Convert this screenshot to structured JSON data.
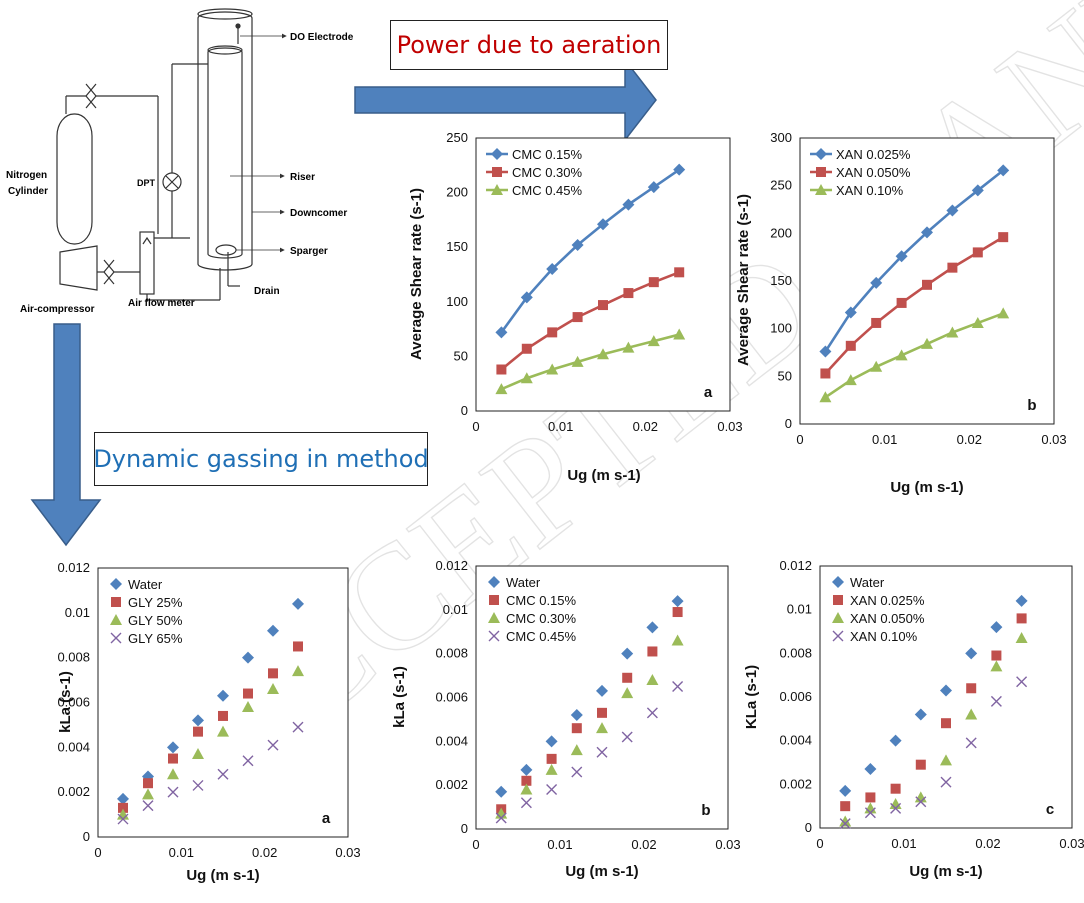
{
  "diagram": {
    "labels": {
      "do_electrode": "DO Electrode",
      "nitrogen_1": "Nitrogen",
      "nitrogen_2": "Cylinder",
      "dpt": "DPT",
      "riser": "Riser",
      "downcomer": "Downcomer",
      "sparger": "Sparger",
      "drain": "Drain",
      "air_compressor": "Air-compressor",
      "air_flow_meter": "Air flow meter"
    }
  },
  "callouts": {
    "power": "Power due to aeration",
    "dynamic": "Dynamic gassing in method"
  },
  "colors": {
    "blue": "#4F81BD",
    "red": "#C0504D",
    "green": "#9BBB59",
    "purple": "#8064A2",
    "arrow_fill": "#4F81BD",
    "arrow_stroke": "#385D8A",
    "callout_red": "#C00000",
    "callout_blue": "#1F6FB5"
  },
  "watermark": "ACCEPTED MANUSCRIPT",
  "chart_data": [
    {
      "type": "line",
      "panel": "a",
      "ylabel": "Average Shear rate (s-1)",
      "xlabel": "Ug (m s-1)",
      "xlim": [
        0,
        0.03
      ],
      "ylim": [
        0,
        250
      ],
      "xticks": [
        "0",
        "0.01",
        "0.02",
        "0.03"
      ],
      "yticks": [
        "0",
        "50",
        "100",
        "150",
        "200",
        "250"
      ],
      "legend": "top-left",
      "series": [
        {
          "name": "CMC 0.15%",
          "color": "#4F81BD",
          "marker": "diamond",
          "x": [
            0.003,
            0.006,
            0.009,
            0.012,
            0.015,
            0.018,
            0.021,
            0.024
          ],
          "y": [
            72,
            104,
            130,
            152,
            171,
            189,
            205,
            221
          ]
        },
        {
          "name": "CMC 0.30%",
          "color": "#C0504D",
          "marker": "square",
          "x": [
            0.003,
            0.006,
            0.009,
            0.012,
            0.015,
            0.018,
            0.021,
            0.024
          ],
          "y": [
            38,
            57,
            72,
            86,
            97,
            108,
            118,
            127
          ]
        },
        {
          "name": "CMC 0.45%",
          "color": "#9BBB59",
          "marker": "triangle",
          "x": [
            0.003,
            0.006,
            0.009,
            0.012,
            0.015,
            0.018,
            0.021,
            0.024
          ],
          "y": [
            20,
            30,
            38,
            45,
            52,
            58,
            64,
            70
          ]
        }
      ]
    },
    {
      "type": "line",
      "panel": "b",
      "ylabel": "Average Shear rate (s-1)",
      "xlabel": "Ug (m s-1)",
      "xlim": [
        0,
        0.03
      ],
      "ylim": [
        0,
        300
      ],
      "xticks": [
        "0",
        "0.01",
        "0.02",
        "0.03"
      ],
      "yticks": [
        "0",
        "50",
        "100",
        "150",
        "200",
        "250",
        "300"
      ],
      "legend": "top-left",
      "series": [
        {
          "name": "XAN 0.025%",
          "color": "#4F81BD",
          "marker": "diamond",
          "x": [
            0.003,
            0.006,
            0.009,
            0.012,
            0.015,
            0.018,
            0.021,
            0.024
          ],
          "y": [
            76,
            117,
            148,
            176,
            201,
            224,
            245,
            266
          ]
        },
        {
          "name": "XAN 0.050%",
          "color": "#C0504D",
          "marker": "square",
          "x": [
            0.003,
            0.006,
            0.009,
            0.012,
            0.015,
            0.018,
            0.021,
            0.024
          ],
          "y": [
            53,
            82,
            106,
            127,
            146,
            164,
            180,
            196
          ]
        },
        {
          "name": "XAN 0.10%",
          "color": "#9BBB59",
          "marker": "triangle",
          "x": [
            0.003,
            0.006,
            0.009,
            0.012,
            0.015,
            0.018,
            0.021,
            0.024
          ],
          "y": [
            28,
            46,
            60,
            72,
            84,
            96,
            106,
            116
          ]
        }
      ]
    },
    {
      "type": "scatter",
      "panel": "a",
      "ylabel": "kLa (s-1)",
      "xlabel": "Ug (m s-1)",
      "xlim": [
        0,
        0.03
      ],
      "ylim": [
        0,
        0.012
      ],
      "xticks": [
        "0",
        "0.01",
        "0.02",
        "0.03"
      ],
      "yticks": [
        "0",
        "0.002",
        "0.004",
        "0.006",
        "0.008",
        "0.01",
        "0.012"
      ],
      "legend": "top-left",
      "series": [
        {
          "name": "Water",
          "color": "#4F81BD",
          "marker": "diamond",
          "x": [
            0.003,
            0.006,
            0.009,
            0.012,
            0.015,
            0.018,
            0.021,
            0.024
          ],
          "y": [
            0.0017,
            0.0027,
            0.004,
            0.0052,
            0.0063,
            0.008,
            0.0092,
            0.0104
          ]
        },
        {
          "name": "GLY 25%",
          "color": "#C0504D",
          "marker": "square",
          "x": [
            0.003,
            0.006,
            0.009,
            0.012,
            0.015,
            0.018,
            0.021,
            0.024
          ],
          "y": [
            0.0013,
            0.0024,
            0.0035,
            0.0047,
            0.0054,
            0.0064,
            0.0073,
            0.0085
          ]
        },
        {
          "name": "GLY 50%",
          "color": "#9BBB59",
          "marker": "triangle",
          "x": [
            0.003,
            0.006,
            0.009,
            0.012,
            0.015,
            0.018,
            0.021,
            0.024
          ],
          "y": [
            0.001,
            0.0019,
            0.0028,
            0.0037,
            0.0047,
            0.0058,
            0.0066,
            0.0074
          ]
        },
        {
          "name": "GLY 65%",
          "color": "#8064A2",
          "marker": "x",
          "x": [
            0.003,
            0.006,
            0.009,
            0.012,
            0.015,
            0.018,
            0.021,
            0.024
          ],
          "y": [
            0.0008,
            0.0014,
            0.002,
            0.0023,
            0.0028,
            0.0034,
            0.0041,
            0.0049
          ]
        }
      ]
    },
    {
      "type": "scatter",
      "panel": "b",
      "ylabel": "kLa (s-1)",
      "xlabel": "Ug (m s-1)",
      "xlim": [
        0,
        0.03
      ],
      "ylim": [
        0,
        0.012
      ],
      "xticks": [
        "0",
        "0.01",
        "0.02",
        "0.03"
      ],
      "yticks": [
        "0",
        "0.002",
        "0.004",
        "0.006",
        "0.008",
        "0.01",
        "0.012"
      ],
      "legend": "top-left",
      "series": [
        {
          "name": "Water",
          "color": "#4F81BD",
          "marker": "diamond",
          "x": [
            0.003,
            0.006,
            0.009,
            0.012,
            0.015,
            0.018,
            0.021,
            0.024
          ],
          "y": [
            0.0017,
            0.0027,
            0.004,
            0.0052,
            0.0063,
            0.008,
            0.0092,
            0.0104
          ]
        },
        {
          "name": "CMC 0.15%",
          "color": "#C0504D",
          "marker": "square",
          "x": [
            0.003,
            0.006,
            0.009,
            0.012,
            0.015,
            0.018,
            0.021,
            0.024
          ],
          "y": [
            0.0009,
            0.0022,
            0.0032,
            0.0046,
            0.0053,
            0.0069,
            0.0081,
            0.0099
          ]
        },
        {
          "name": "CMC 0.30%",
          "color": "#9BBB59",
          "marker": "triangle",
          "x": [
            0.003,
            0.006,
            0.009,
            0.012,
            0.015,
            0.018,
            0.021,
            0.024
          ],
          "y": [
            0.0007,
            0.0018,
            0.0027,
            0.0036,
            0.0046,
            0.0062,
            0.0068,
            0.0086
          ]
        },
        {
          "name": "CMC 0.45%",
          "color": "#8064A2",
          "marker": "x",
          "x": [
            0.003,
            0.006,
            0.009,
            0.012,
            0.015,
            0.018,
            0.021,
            0.024
          ],
          "y": [
            0.0005,
            0.0012,
            0.0018,
            0.0026,
            0.0035,
            0.0042,
            0.0053,
            0.0065
          ]
        }
      ]
    },
    {
      "type": "scatter",
      "panel": "c",
      "ylabel": "KLa (s-1)",
      "xlabel": "Ug (m s-1)",
      "xlim": [
        0,
        0.03
      ],
      "ylim": [
        0,
        0.012
      ],
      "xticks": [
        "0",
        "0.01",
        "0.02",
        "0.03"
      ],
      "yticks": [
        "0",
        "0.002",
        "0.004",
        "0.006",
        "0.008",
        "0.01",
        "0.012"
      ],
      "legend": "top-left",
      "series": [
        {
          "name": "Water",
          "color": "#4F81BD",
          "marker": "diamond",
          "x": [
            0.003,
            0.006,
            0.009,
            0.012,
            0.015,
            0.018,
            0.021,
            0.024
          ],
          "y": [
            0.0017,
            0.0027,
            0.004,
            0.0052,
            0.0063,
            0.008,
            0.0092,
            0.0104
          ]
        },
        {
          "name": "XAN 0.025%",
          "color": "#C0504D",
          "marker": "square",
          "x": [
            0.003,
            0.006,
            0.009,
            0.012,
            0.015,
            0.018,
            0.021,
            0.024
          ],
          "y": [
            0.001,
            0.0014,
            0.0018,
            0.0029,
            0.0048,
            0.0064,
            0.0079,
            0.0096
          ]
        },
        {
          "name": "XAN 0.050%",
          "color": "#9BBB59",
          "marker": "triangle",
          "x": [
            0.003,
            0.006,
            0.009,
            0.012,
            0.015,
            0.018,
            0.021,
            0.024
          ],
          "y": [
            0.0003,
            0.0009,
            0.0011,
            0.0014,
            0.0031,
            0.0052,
            0.0074,
            0.0087
          ]
        },
        {
          "name": "XAN 0.10%",
          "color": "#8064A2",
          "marker": "x",
          "x": [
            0.003,
            0.006,
            0.009,
            0.012,
            0.015,
            0.018,
            0.021,
            0.024
          ],
          "y": [
            0.0002,
            0.0007,
            0.0009,
            0.0012,
            0.0021,
            0.0039,
            0.0058,
            0.0067
          ]
        }
      ]
    }
  ]
}
